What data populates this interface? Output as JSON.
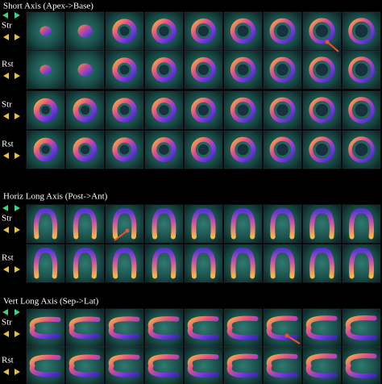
{
  "sections": [
    {
      "title": "Short Axis (Apex->Base)",
      "rows": [
        {
          "label": "Str"
        },
        {
          "label": "Rst"
        },
        {
          "label": "Str"
        },
        {
          "label": "Rst"
        }
      ]
    },
    {
      "title": "Horiz Long Axis (Post->Ant)",
      "rows": [
        {
          "label": "Str"
        },
        {
          "label": "Rst"
        }
      ]
    },
    {
      "title": "Vert Long Axis (Sep->Lat)",
      "rows": [
        {
          "label": "Str"
        },
        {
          "label": "Rst"
        }
      ]
    }
  ]
}
